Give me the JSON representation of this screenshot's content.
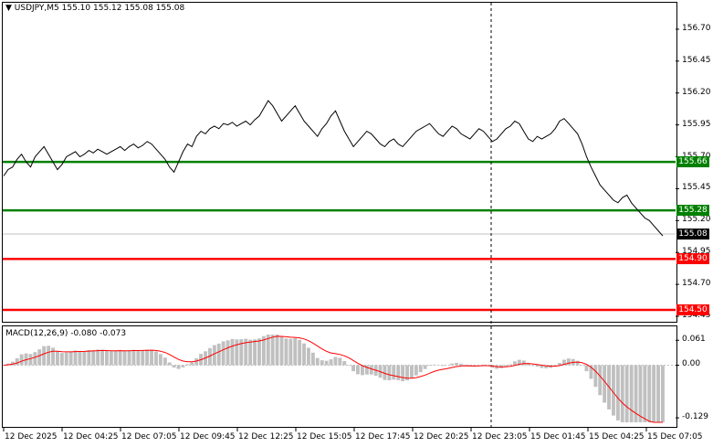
{
  "header": {
    "symbol": "USDJPY,M5",
    "ohlc": "155.10 155.12 155.08 155.08",
    "arrow": "triangle-down-icon"
  },
  "price_axis": {
    "ticks": [
      "156.70",
      "156.45",
      "156.20",
      "155.95",
      "155.70",
      "155.45",
      "155.20",
      "154.95",
      "154.70",
      "154.45"
    ],
    "current_price": "155.08"
  },
  "levels": [
    {
      "label": "155.66",
      "color": "#008000"
    },
    {
      "label": "155.28",
      "color": "#008000"
    },
    {
      "label": "154.90",
      "color": "#ff0000"
    },
    {
      "label": "154.50",
      "color": "#ff0000"
    }
  ],
  "macd": {
    "title": "MACD(12,26,9) -0.080 -0.073",
    "ticks": [
      "0.061",
      "0.00",
      "-0.129"
    ],
    "histogram_color": "#c0c0c0",
    "signal_color": "#ff0000"
  },
  "time_axis": {
    "labels": [
      "12 Dec 2025",
      "12 Dec 04:25",
      "12 Dec 07:05",
      "12 Dec 09:45",
      "12 Dec 12:25",
      "12 Dec 15:05",
      "12 Dec 17:45",
      "12 Dec 20:25",
      "12 Dec 23:05",
      "15 Dec 01:45",
      "15 Dec 04:25",
      "15 Dec 07:05"
    ]
  },
  "chart_data": {
    "type": "line",
    "series": [
      {
        "values": [
          155.55,
          155.6,
          155.62,
          155.68,
          155.72,
          155.66,
          155.62,
          155.7,
          155.74,
          155.78,
          155.72,
          155.66,
          155.6,
          155.64,
          155.7,
          155.72,
          155.74,
          155.7,
          155.72,
          155.75,
          155.73,
          155.76,
          155.74,
          155.72,
          155.74,
          155.76,
          155.78,
          155.75,
          155.78,
          155.8,
          155.77,
          155.79,
          155.82,
          155.8,
          155.76,
          155.72,
          155.68,
          155.62,
          155.58,
          155.66,
          155.74,
          155.8,
          155.78,
          155.86,
          155.9,
          155.88,
          155.92,
          155.94,
          155.92,
          155.96,
          155.95,
          155.97,
          155.94,
          155.96,
          155.98,
          155.95,
          155.99,
          156.02,
          156.08,
          156.14,
          156.1,
          156.04,
          155.98,
          156.02,
          156.06,
          156.1,
          156.04,
          155.98,
          155.94,
          155.9,
          155.86,
          155.92,
          155.96,
          156.02,
          156.06,
          155.98,
          155.9,
          155.84,
          155.78,
          155.82,
          155.86,
          155.9,
          155.88,
          155.84,
          155.8,
          155.78,
          155.82,
          155.84,
          155.8,
          155.78,
          155.82,
          155.86,
          155.9,
          155.92,
          155.94,
          155.96,
          155.92,
          155.88,
          155.86,
          155.9,
          155.94,
          155.92,
          155.88,
          155.86,
          155.84,
          155.88,
          155.92,
          155.9,
          155.86,
          155.82,
          155.84,
          155.88,
          155.92,
          155.94,
          155.98,
          155.96,
          155.9,
          155.84,
          155.82,
          155.86,
          155.84,
          155.86,
          155.88,
          155.92,
          155.98,
          156.0,
          155.96,
          155.92,
          155.88,
          155.8,
          155.7,
          155.62,
          155.55,
          155.48,
          155.44,
          155.4,
          155.36,
          155.34,
          155.38,
          155.4,
          155.34,
          155.3,
          155.26,
          155.22,
          155.2,
          155.16,
          155.12,
          155.08
        ]
      }
    ],
    "xlabel": "",
    "ylabel": "",
    "ylim": [
      154.45,
      156.8
    ],
    "grid": false
  }
}
